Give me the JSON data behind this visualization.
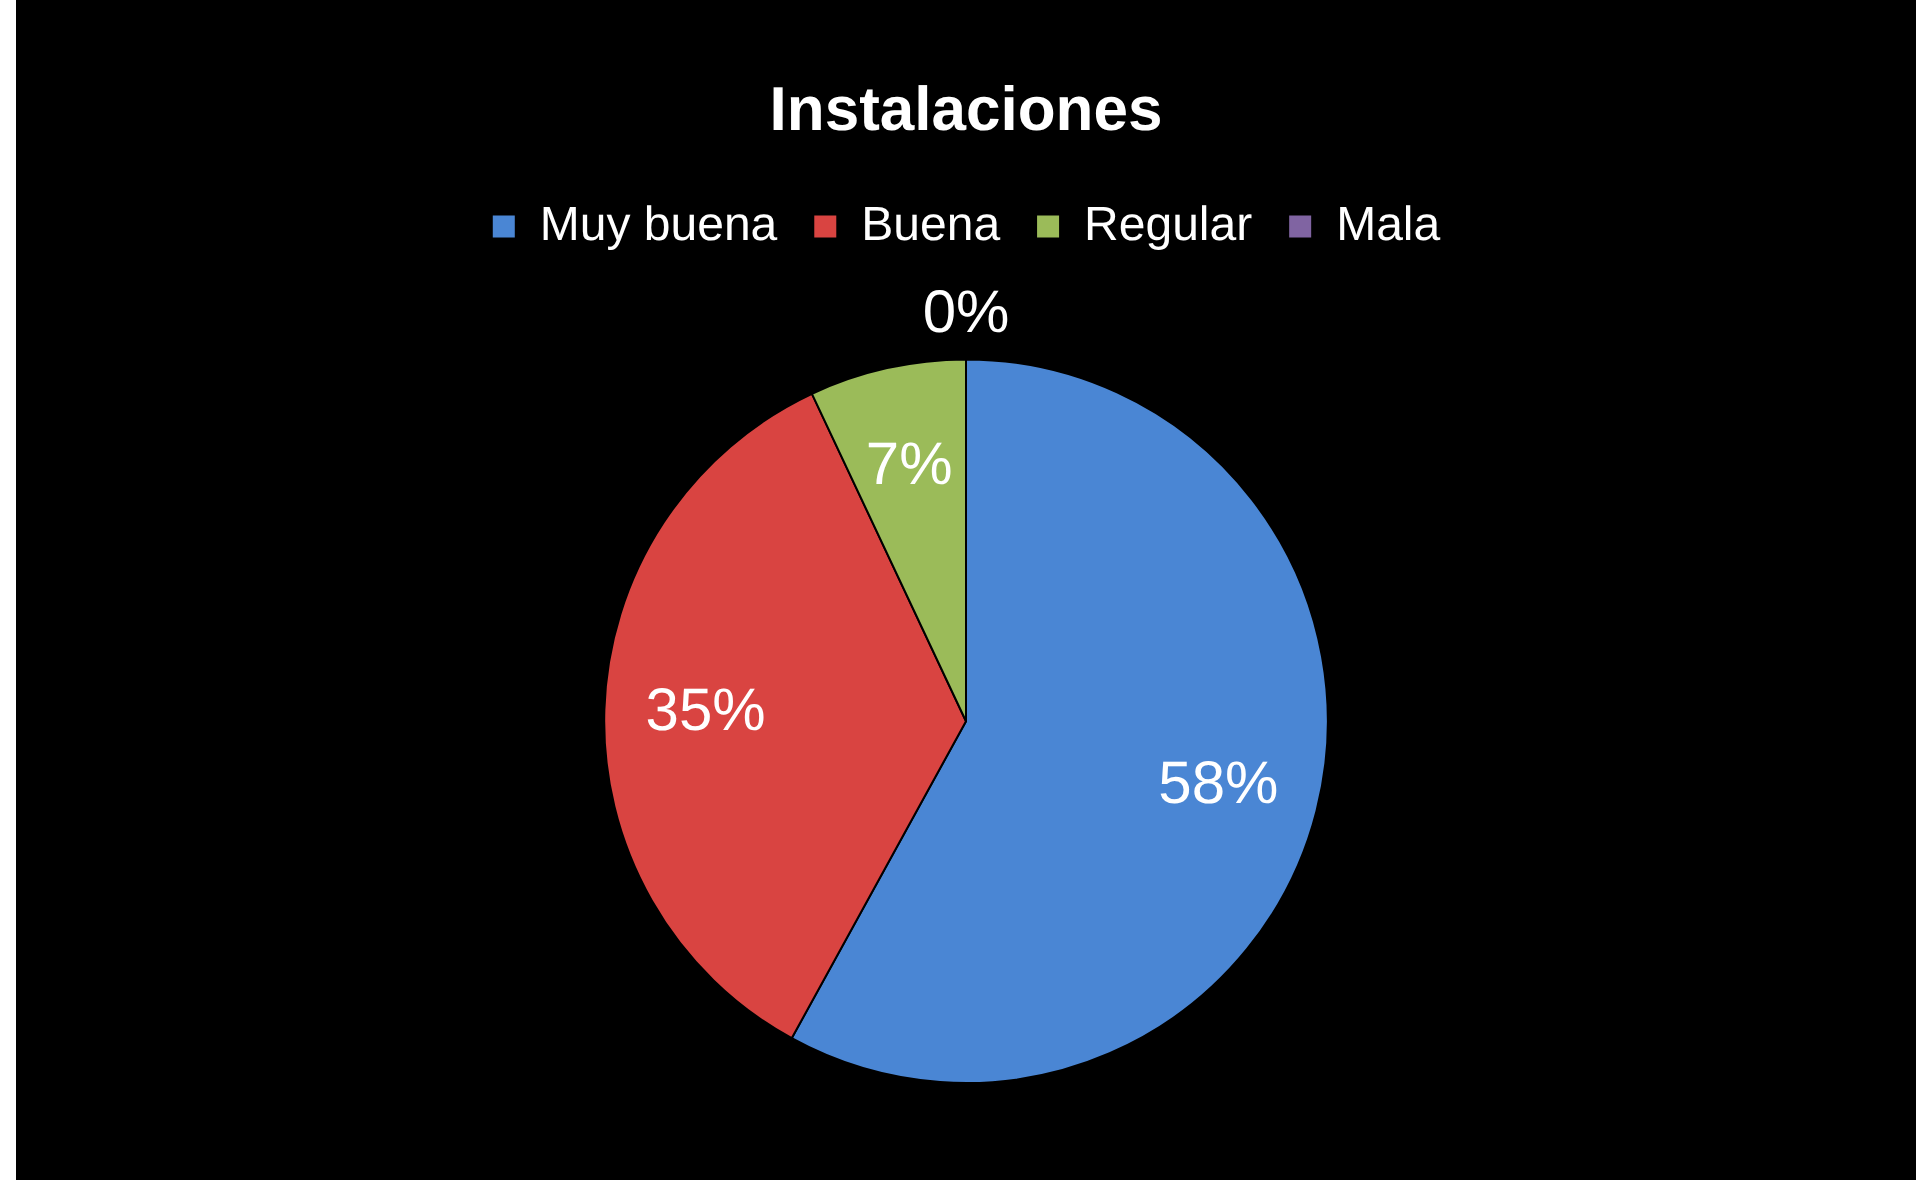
{
  "chart_data": {
    "type": "pie",
    "title": "Instalaciones",
    "legend": "top",
    "categories": [
      "Muy buena",
      "Buena",
      "Regular",
      "Mala"
    ],
    "values": [
      58,
      35,
      7,
      0
    ],
    "colors": [
      "#4a86d4",
      "#d94441",
      "#9bbb59",
      "#8064a2"
    ],
    "value_labels": [
      "58%",
      "35%",
      "7%",
      "0%"
    ]
  }
}
